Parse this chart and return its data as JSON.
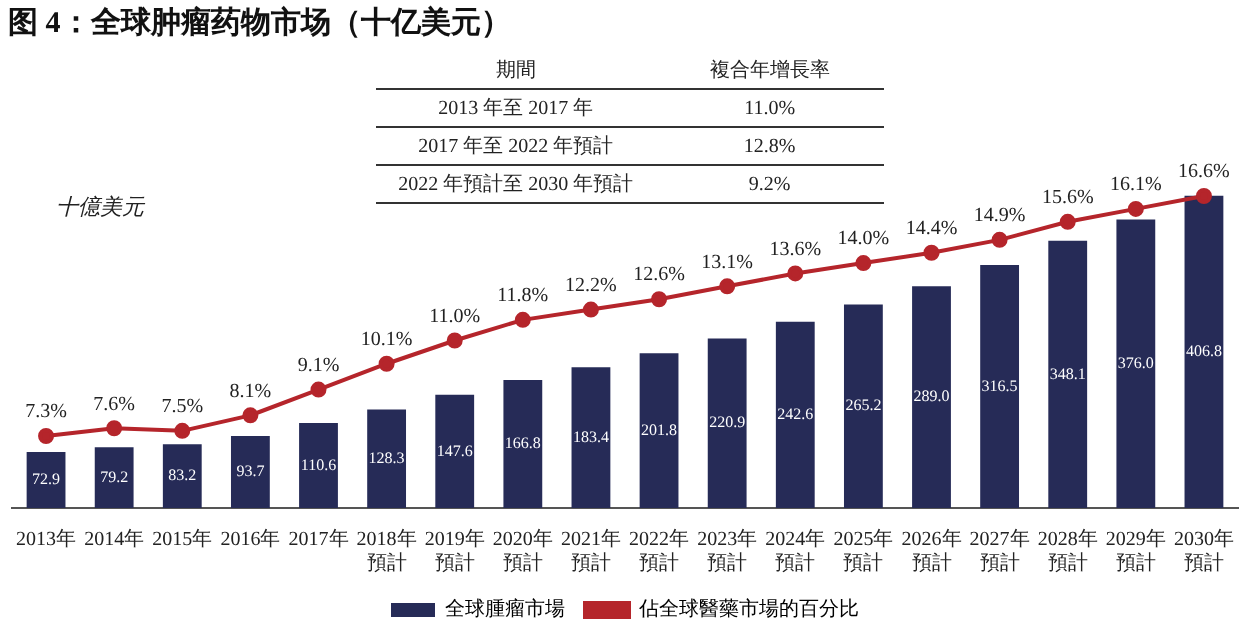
{
  "chart_data": {
    "type": "bar",
    "title": "图 4：全球肿瘤药物市场（十亿美元）",
    "ylabel": "十億美元",
    "categories": [
      "2013年",
      "2014年",
      "2015年",
      "2016年",
      "2017年",
      "2018年預計",
      "2019年預計",
      "2020年預計",
      "2021年預計",
      "2022年預計",
      "2023年預計",
      "2024年預計",
      "2025年預計",
      "2026年預計",
      "2027年預計",
      "2028年預計",
      "2029年預計",
      "2030年預計"
    ],
    "series": [
      {
        "name": "全球腫瘤市場",
        "color": "#262b57",
        "values": [
          72.9,
          79.2,
          83.2,
          93.7,
          110.6,
          128.3,
          147.6,
          166.8,
          183.4,
          201.8,
          220.9,
          242.6,
          265.2,
          289.0,
          316.5,
          348.1,
          376.0,
          406.8
        ],
        "value_labels": [
          "72.9",
          "79.2",
          "83.2",
          "93.7",
          "110.6",
          "128.3",
          "147.6",
          "166.8",
          "183.4",
          "201.8",
          "220.9",
          "242.6",
          "265.2",
          "289.0",
          "316.5",
          "348.1",
          "376.0",
          "406.8"
        ]
      },
      {
        "name": "佔全球醫藥市場的百分比",
        "type": "line",
        "axis": "y2",
        "color": "#b5252b",
        "marker": "circle",
        "values": [
          7.3,
          7.6,
          7.5,
          8.1,
          9.1,
          10.1,
          11.0,
          11.8,
          12.2,
          12.6,
          13.1,
          13.6,
          14.0,
          14.4,
          14.9,
          15.6,
          16.1,
          16.6
        ],
        "value_labels": [
          "7.3%",
          "7.6%",
          "7.5%",
          "8.1%",
          "9.1%",
          "10.1%",
          "11.0%",
          "11.8%",
          "12.2%",
          "12.6%",
          "13.1%",
          "13.6%",
          "14.0%",
          "14.4%",
          "14.9%",
          "15.6%",
          "16.1%",
          "16.6%"
        ]
      }
    ],
    "tick_labels": "x",
    "grid": false,
    "legend": "bottom",
    "annotations": [
      "期間",
      "複合年增長率",
      "2013 年至 2017 年",
      "11.0%",
      "2017 年至 2022 年預計",
      "12.8%",
      "2022 年預計至 2030 年預計",
      "9.2%"
    ]
  }
}
